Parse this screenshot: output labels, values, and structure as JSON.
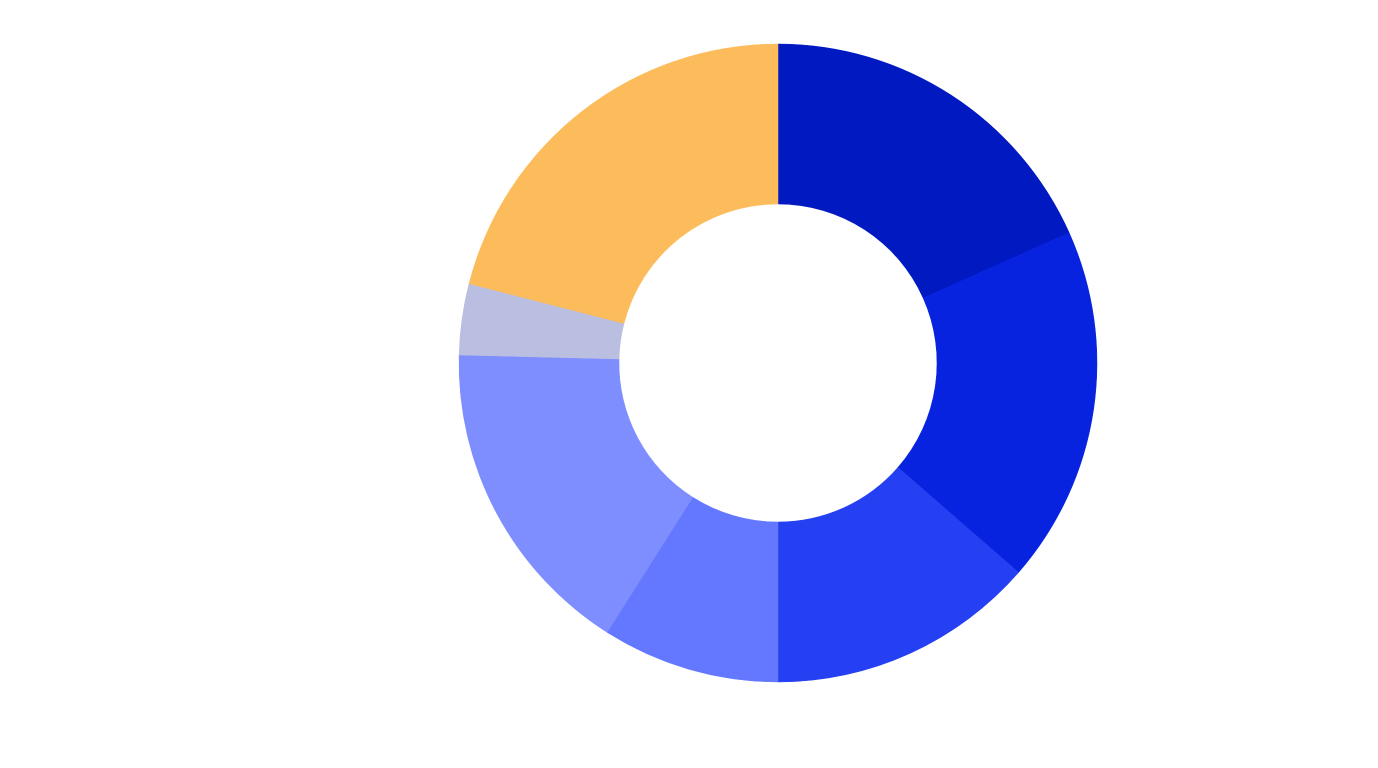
{
  "chart_data": {
    "type": "donut",
    "values": [
      18.3,
      18.1,
      13.6,
      9.0,
      16.4,
      3.6,
      21.0
    ],
    "colors": [
      "#0019c1",
      "#0723e0",
      "#2540f2",
      "#6478ff",
      "#7f8eff",
      "#babee1",
      "#fdbc5b"
    ]
  }
}
